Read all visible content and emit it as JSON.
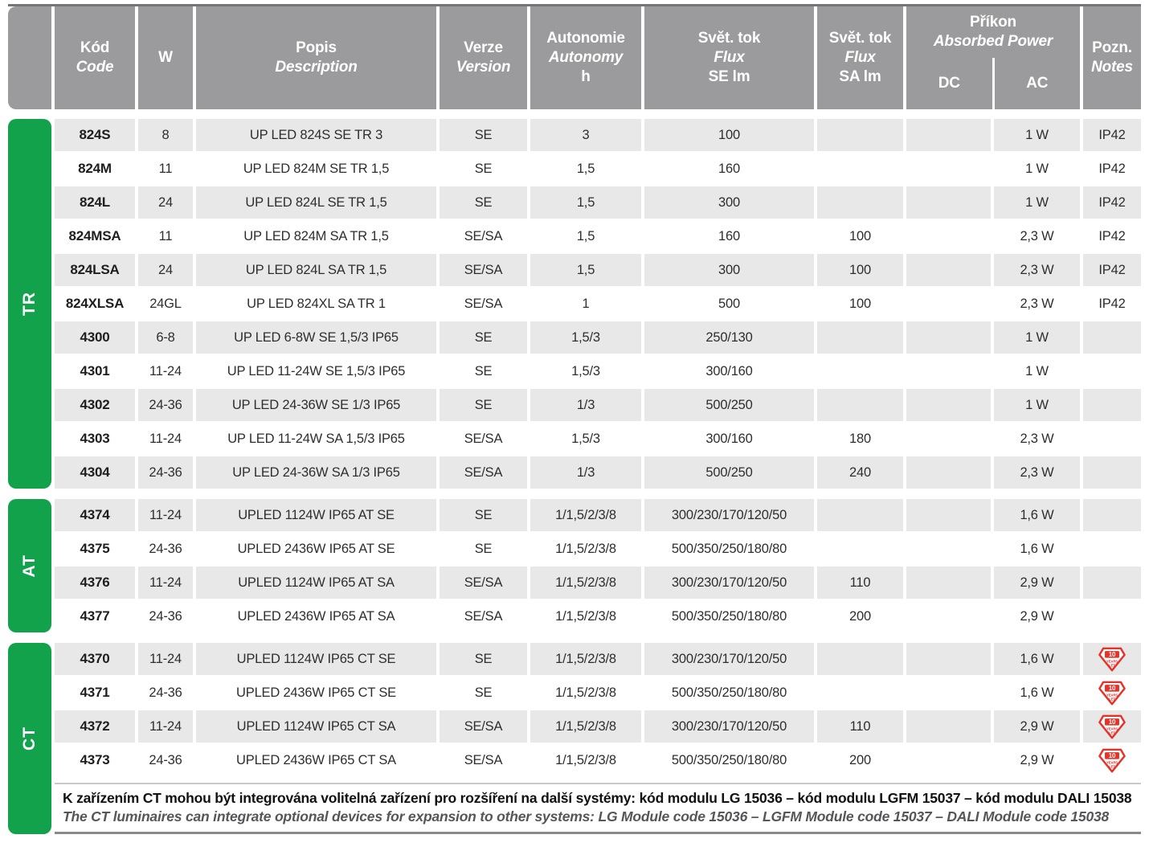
{
  "header": {
    "code_cs": "Kód",
    "code_en": "Code",
    "w": "W",
    "desc_cs": "Popis",
    "desc_en": "Description",
    "version_cs": "Verze",
    "version_en": "Version",
    "autonomy_cs": "Autonomie",
    "autonomy_en": "Autonomy",
    "autonomy_unit": "h",
    "flux_se_cs": "Svět. tok",
    "flux_se_en": "Flux",
    "flux_se_unit": "SE lm",
    "flux_sa_cs": "Svět. tok",
    "flux_sa_en": "Flux",
    "flux_sa_unit": "SA lm",
    "power_cs": "Příkon",
    "power_en": "Absorbed Power",
    "power_dc": "DC",
    "power_ac": "AC",
    "notes_cs": "Pozn.",
    "notes_en": "Notes"
  },
  "sections": [
    {
      "label": "TR",
      "rows": [
        {
          "code": "824S",
          "w": "8",
          "desc": "UP LED 824S SE TR 3",
          "version": "SE",
          "autonomy": "3",
          "flux_se": "100",
          "flux_sa": "",
          "dc": "",
          "ac": "1 W",
          "notes": "IP42"
        },
        {
          "code": "824M",
          "w": "11",
          "desc": "UP LED 824M SE TR 1,5",
          "version": "SE",
          "autonomy": "1,5",
          "flux_se": "160",
          "flux_sa": "",
          "dc": "",
          "ac": "1 W",
          "notes": "IP42"
        },
        {
          "code": "824L",
          "w": "24",
          "desc": "UP LED 824L SE TR 1,5",
          "version": "SE",
          "autonomy": "1,5",
          "flux_se": "300",
          "flux_sa": "",
          "dc": "",
          "ac": "1 W",
          "notes": "IP42"
        },
        {
          "code": "824MSA",
          "w": "11",
          "desc": "UP LED 824M SA TR 1,5",
          "version": "SE/SA",
          "autonomy": "1,5",
          "flux_se": "160",
          "flux_sa": "100",
          "dc": "",
          "ac": "2,3 W",
          "notes": "IP42"
        },
        {
          "code": "824LSA",
          "w": "24",
          "desc": "UP LED 824L SA TR 1,5",
          "version": "SE/SA",
          "autonomy": "1,5",
          "flux_se": "300",
          "flux_sa": "100",
          "dc": "",
          "ac": "2,3 W",
          "notes": "IP42"
        },
        {
          "code": "824XLSA",
          "w": "24GL",
          "desc": "UP LED 824XL SA TR 1",
          "version": "SE/SA",
          "autonomy": "1",
          "flux_se": "500",
          "flux_sa": "100",
          "dc": "",
          "ac": "2,3 W",
          "notes": "IP42"
        },
        {
          "code": "4300",
          "w": "6-8",
          "desc": "UP LED 6-8W SE 1,5/3 IP65",
          "version": "SE",
          "autonomy": "1,5/3",
          "flux_se": "250/130",
          "flux_sa": "",
          "dc": "",
          "ac": "1 W",
          "notes": ""
        },
        {
          "code": "4301",
          "w": "11-24",
          "desc": "UP LED 11-24W SE 1,5/3 IP65",
          "version": "SE",
          "autonomy": "1,5/3",
          "flux_se": "300/160",
          "flux_sa": "",
          "dc": "",
          "ac": "1 W",
          "notes": ""
        },
        {
          "code": "4302",
          "w": "24-36",
          "desc": "UP LED 24-36W SE 1/3 IP65",
          "version": "SE",
          "autonomy": "1/3",
          "flux_se": "500/250",
          "flux_sa": "",
          "dc": "",
          "ac": "1 W",
          "notes": ""
        },
        {
          "code": "4303",
          "w": "11-24",
          "desc": "UP LED 11-24W SA 1,5/3 IP65",
          "version": "SE/SA",
          "autonomy": "1,5/3",
          "flux_se": "300/160",
          "flux_sa": "180",
          "dc": "",
          "ac": "2,3 W",
          "notes": ""
        },
        {
          "code": "4304",
          "w": "24-36",
          "desc": "UP LED 24-36W SA 1/3 IP65",
          "version": "SE/SA",
          "autonomy": "1/3",
          "flux_se": "500/250",
          "flux_sa": "240",
          "dc": "",
          "ac": "2,3 W",
          "notes": ""
        }
      ]
    },
    {
      "label": "AT",
      "rows": [
        {
          "code": "4374",
          "w": "11-24",
          "desc": "UPLED 1124W IP65 AT SE",
          "version": "SE",
          "autonomy": "1/1,5/2/3/8",
          "flux_se": "300/230/170/120/50",
          "flux_sa": "",
          "dc": "",
          "ac": "1,6 W",
          "notes": ""
        },
        {
          "code": "4375",
          "w": "24-36",
          "desc": "UPLED 2436W IP65 AT SE",
          "version": "SE",
          "autonomy": "1/1,5/2/3/8",
          "flux_se": "500/350/250/180/80",
          "flux_sa": "",
          "dc": "",
          "ac": "1,6 W",
          "notes": ""
        },
        {
          "code": "4376",
          "w": "11-24",
          "desc": "UPLED 1124W IP65 AT SA",
          "version": "SE/SA",
          "autonomy": "1/1,5/2/3/8",
          "flux_se": "300/230/170/120/50",
          "flux_sa": "110",
          "dc": "",
          "ac": "2,9 W",
          "notes": ""
        },
        {
          "code": "4377",
          "w": "24-36",
          "desc": "UPLED 2436W IP65 AT SA",
          "version": "SE/SA",
          "autonomy": "1/1,5/2/3/8",
          "flux_se": "500/350/250/180/80",
          "flux_sa": "200",
          "dc": "",
          "ac": "2,9 W",
          "notes": ""
        }
      ]
    },
    {
      "label": "CT",
      "rows": [
        {
          "code": "4370",
          "w": "11-24",
          "desc": "UPLED 1124W IP65 CT SE",
          "version": "SE",
          "autonomy": "1/1,5/2/3/8",
          "flux_se": "300/230/170/120/50",
          "flux_sa": "",
          "dc": "",
          "ac": "1,6 W",
          "notes": "10-years-badge"
        },
        {
          "code": "4371",
          "w": "24-36",
          "desc": "UPLED 2436W IP65 CT SE",
          "version": "SE",
          "autonomy": "1/1,5/2/3/8",
          "flux_se": "500/350/250/180/80",
          "flux_sa": "",
          "dc": "",
          "ac": "1,6 W",
          "notes": "10-years-badge"
        },
        {
          "code": "4372",
          "w": "11-24",
          "desc": "UPLED 1124W IP65 CT SA",
          "version": "SE/SA",
          "autonomy": "1/1,5/2/3/8",
          "flux_se": "300/230/170/120/50",
          "flux_sa": "110",
          "dc": "",
          "ac": "2,9 W",
          "notes": "10-years-badge"
        },
        {
          "code": "4373",
          "w": "24-36",
          "desc": "UPLED 2436W IP65 CT SA",
          "version": "SE/SA",
          "autonomy": "1/1,5/2/3/8",
          "flux_se": "500/350/250/180/80",
          "flux_sa": "200",
          "dc": "",
          "ac": "2,9 W",
          "notes": "10-years-badge"
        }
      ]
    }
  ],
  "footnote": {
    "cs": "K zařízením CT mohou být integrována volitelná zařízení pro rozšíření na další systémy: kód modulu LG 15036 – kód modulu LGFM 15037 – kód modulu DALI 15038",
    "en": "The CT luminaires can integrate optional devices for expansion to other systems: LG Module code 15036 – LGFM Module code 15037 – DALI Module code 15038"
  },
  "badge": {
    "value": "10",
    "line2": "YEARS",
    "line3": "LET"
  },
  "colors": {
    "green": "#12a24b",
    "header_gray": "#9b9b9d",
    "row_gray": "#e8e8e8",
    "red": "#e6332a"
  }
}
